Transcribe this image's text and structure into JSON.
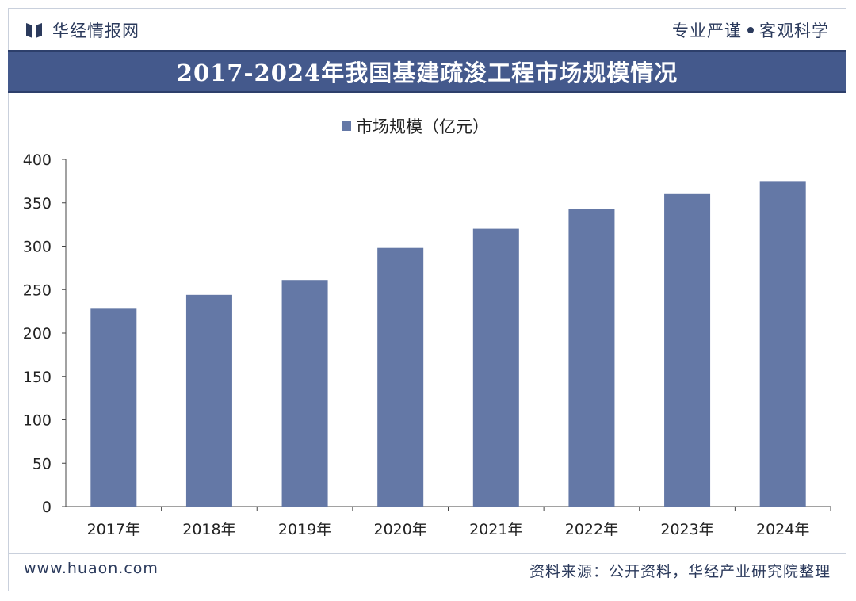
{
  "header": {
    "brand_name": "华经情报网",
    "brand_icon": "book-logo-icon",
    "slogan_left": "专业严谨",
    "slogan_right": "客观科学",
    "accent_color": "#44598c"
  },
  "footer": {
    "website": "www.huaon.com",
    "source": "资料来源：公开资料，华经产业研究院整理"
  },
  "chart_data": {
    "type": "bar",
    "title": "2017-2024年我国基建疏浚工程市场规模情况",
    "xlabel": "",
    "ylabel": "",
    "categories": [
      "2017年",
      "2018年",
      "2019年",
      "2020年",
      "2021年",
      "2022年",
      "2023年",
      "2024年"
    ],
    "series": [
      {
        "name": "市场规模（亿元）",
        "values": [
          228,
          244,
          261,
          298,
          320,
          343,
          360,
          375
        ],
        "color": "#6478a6"
      }
    ],
    "ylim": [
      0,
      400
    ],
    "yticks": [
      0,
      50,
      100,
      150,
      200,
      250,
      300,
      350,
      400
    ],
    "grid": false,
    "legend": "top-center"
  }
}
